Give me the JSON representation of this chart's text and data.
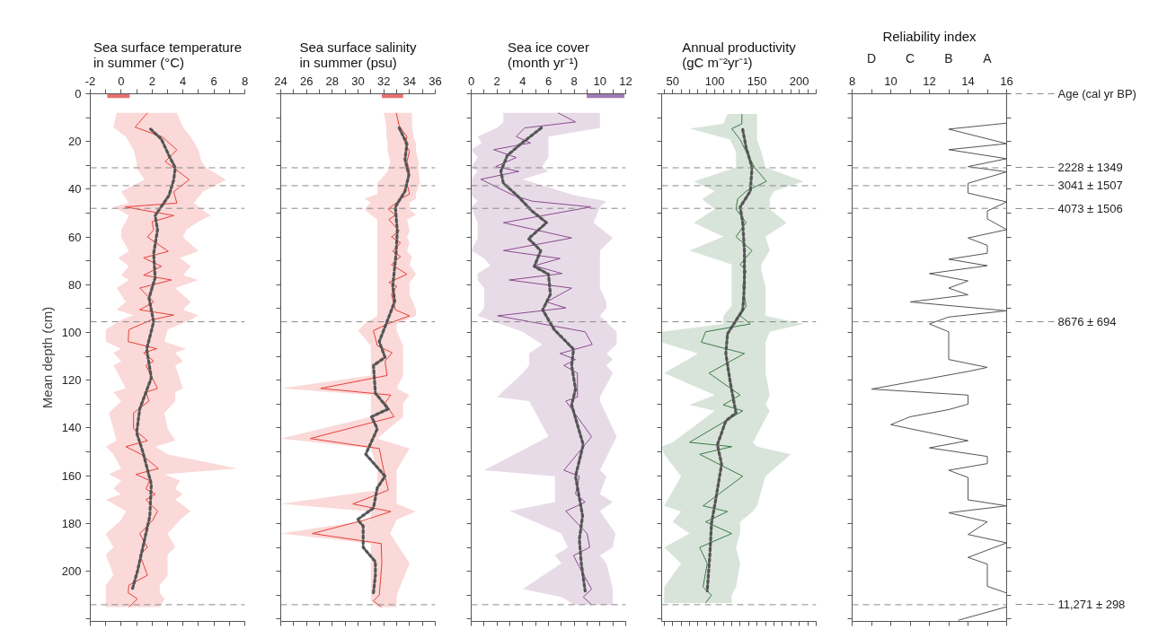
{
  "chart_data": [
    {
      "type": "line",
      "orientation": "horizontal",
      "title": "Sea surface temperature\nin summer (°C)",
      "ylabel": "Mean depth (cm)",
      "xlim": [
        -2,
        8
      ],
      "xticks": [
        -2,
        {
          "value": -1,
          "label": null
        },
        0,
        {
          "value": 1,
          "label": null
        },
        2,
        {
          "value": 3,
          "label": null
        },
        4,
        {
          "value": 5,
          "label": null
        },
        6,
        {
          "value": 7,
          "label": null
        },
        8
      ],
      "ylim": [
        221,
        0
      ],
      "yticks": [
        0,
        {
          "value": 10,
          "label": null
        },
        20,
        {
          "value": 30,
          "label": null
        },
        40,
        {
          "value": 50,
          "label": null
        },
        60,
        {
          "value": 70,
          "label": null
        },
        80,
        {
          "value": 90,
          "label": null
        },
        100,
        {
          "value": 110,
          "label": null
        },
        120,
        {
          "value": 130,
          "label": null
        },
        140,
        {
          "value": 150,
          "label": null
        },
        160,
        {
          "value": 170,
          "label": null
        },
        180,
        {
          "value": 190,
          "label": null
        },
        200,
        {
          "value": 210,
          "label": null
        },
        {
          "value": 220,
          "label": null
        }
      ],
      "ref_lines": [
        {
          "axis": "y",
          "value": 31
        },
        {
          "axis": "y",
          "value": 38.5
        },
        {
          "axis": "y",
          "value": 48
        },
        {
          "axis": "y",
          "value": 95.5
        },
        {
          "axis": "y",
          "value": 214
        }
      ],
      "series": [
        {
          "color": "#e8403a",
          "line_style": "solid",
          "x": [
            8,
            14,
            18,
            23.5,
            28.4,
            31,
            36,
            41,
            45.8,
            47.4,
            51,
            53.6,
            57,
            60,
            66,
            68.7,
            72.3,
            76,
            78,
            81.4,
            87.2,
            90.5,
            92.7,
            94.7,
            98.8,
            103.8,
            106.8,
            108.5,
            112,
            113.8,
            123.4,
            125,
            128.7,
            133.7,
            140.3,
            145.3,
            147.8,
            151,
            157,
            159.4,
            162,
            165.5,
            167.7,
            170,
            174.8,
            178.5,
            184.3,
            190,
            193,
            201.7,
            205.8,
            209,
            211.6,
            215
          ],
          "values": [
            1.7,
            0.9,
            2.65,
            3.6,
            2.85,
            3.4,
            4.4,
            3.4,
            3.6,
            0.25,
            3.4,
            2.0,
            2.1,
            1.7,
            3.05,
            1.45,
            2.6,
            1.45,
            3.25,
            1.2,
            2.1,
            1.2,
            3.4,
            1.95,
            0.5,
            0.45,
            2.3,
            1.45,
            2.1,
            1.6,
            2.35,
            1.6,
            1.8,
            0.8,
            0.8,
            1.7,
            0.3,
            1.3,
            2.4,
            0.95,
            1.85,
            1.6,
            2.2,
            1.6,
            2.35,
            2.05,
            1.2,
            1.7,
            1.2,
            1.7,
            0.5,
            0.45,
            1.05,
            0.5
          ],
          "lower": [
            -0.3,
            -0.5,
            0.3,
            0.8,
            1.0,
            1.0,
            1.5,
            0.0,
            0.5,
            -0.5,
            0.5,
            0.3,
            0.0,
            0.0,
            0.5,
            -0.2,
            0.5,
            0.0,
            0.5,
            -0.3,
            0.3,
            -0.3,
            0.8,
            0.0,
            -1.0,
            -1.0,
            0.0,
            -0.5,
            0.0,
            -0.5,
            0.3,
            -0.5,
            0.0,
            -0.8,
            -0.5,
            -0.3,
            -1.0,
            -0.5,
            0.0,
            -0.8,
            0.0,
            -0.5,
            0.0,
            -1.0,
            0.3,
            0.0,
            -1.0,
            -0.5,
            -1.0,
            -0.5,
            -1.0,
            -1.0,
            -1.0,
            -1.0
          ],
          "upper": [
            3.6,
            4.0,
            4.5,
            5.0,
            5.2,
            5.5,
            6.8,
            5.3,
            4.7,
            5.0,
            5.8,
            5.0,
            4.2,
            4.0,
            5.0,
            3.8,
            4.5,
            4.0,
            5.0,
            3.5,
            4.5,
            4.0,
            5.0,
            4.5,
            3.0,
            2.8,
            4.2,
            3.5,
            4.0,
            3.5,
            4.0,
            3.5,
            3.5,
            2.8,
            3.0,
            3.5,
            2.2,
            3.0,
            7.5,
            2.8,
            3.8,
            3.5,
            4.0,
            3.5,
            4.5,
            3.8,
            3.0,
            3.5,
            3.0,
            3.0,
            2.5,
            2.5,
            2.8,
            2.5
          ]
        },
        {
          "color": "#555555",
          "line_style": "dotted",
          "x": [
            14.8,
            19,
            26,
            31,
            36,
            42.5,
            51,
            57,
            67,
            77,
            85.6,
            95.5,
            107,
            119,
            132,
            142,
            150,
            163.5,
            177,
            190,
            200,
            208
          ],
          "values": [
            1.9,
            2.6,
            3.1,
            3.5,
            3.4,
            3.1,
            2.2,
            2.35,
            2.1,
            2.2,
            1.8,
            2.1,
            1.65,
            1.95,
            1.2,
            1.0,
            1.4,
            1.95,
            1.85,
            1.4,
            1.05,
            0.7
          ]
        },
        {
          "type": "bar",
          "color": "#e87070",
          "x": [
            0
          ],
          "base": [
            -0.9
          ],
          "values": [
            1.45
          ]
        }
      ]
    },
    {
      "type": "line",
      "orientation": "horizontal",
      "title": "Sea surface salinity\nin summer (psu)",
      "xlim": [
        24,
        36
      ],
      "xticks": [
        24,
        {
          "value": 25,
          "label": null
        },
        26,
        {
          "value": 27,
          "label": null
        },
        28,
        {
          "value": 29,
          "label": null
        },
        30,
        {
          "value": 31,
          "label": null
        },
        32,
        {
          "value": 33,
          "label": null
        },
        34,
        {
          "value": 35,
          "label": null
        },
        36
      ],
      "ylim": [
        221,
        0
      ],
      "yticks": [
        0,
        10,
        20,
        30,
        40,
        50,
        60,
        70,
        80,
        90,
        100,
        110,
        120,
        130,
        140,
        150,
        160,
        170,
        180,
        190,
        200,
        210,
        220
      ],
      "tick_labels": "x",
      "ref_lines": [
        {
          "axis": "y",
          "value": 31
        },
        {
          "axis": "y",
          "value": 38.5
        },
        {
          "axis": "y",
          "value": 48
        },
        {
          "axis": "y",
          "value": 95.5
        },
        {
          "axis": "y",
          "value": 214
        }
      ],
      "series": [
        {
          "color": "#e8403a",
          "line_style": "solid",
          "x": [
            8,
            13.4,
            18,
            21,
            24,
            28.4,
            32.5,
            37.5,
            42,
            44,
            45.5,
            48.3,
            50.7,
            52.7,
            57.4,
            60,
            62.4,
            66,
            68.2,
            71.5,
            75.6,
            79,
            80.6,
            84,
            90.5,
            93,
            96.4,
            99.2,
            105.5,
            108.5,
            112,
            118,
            123.4,
            126.2,
            129.5,
            135.3,
            144.4,
            148.6,
            157.7,
            166,
            171.8,
            175,
            178.4,
            184.2,
            188.4,
            196.7,
            210,
            212.4,
            215
          ],
          "values": [
            32.97,
            33.2,
            33.8,
            33.65,
            34.0,
            33.8,
            34.0,
            33.8,
            34.0,
            33.3,
            33.0,
            32.35,
            32.9,
            32.4,
            33.2,
            32.6,
            33.3,
            32.7,
            33.3,
            32.6,
            33.8,
            32.4,
            33.0,
            32.6,
            32.9,
            34.0,
            32.3,
            31.2,
            31.5,
            32.65,
            32.1,
            32.25,
            27.1,
            32.55,
            32.1,
            32.8,
            26.3,
            31.65,
            32.0,
            32.35,
            29.6,
            32.55,
            30.6,
            26.45,
            31.8,
            31.85,
            31.65,
            31.2,
            31.8
          ],
          "lower": [
            32.0,
            32.2,
            32.2,
            32.3,
            32.3,
            32.5,
            32.3,
            31.5,
            31.5,
            30.5,
            31.0,
            30.5,
            31.0,
            31.5,
            31.5,
            31.5,
            31.5,
            31.5,
            31.5,
            31.5,
            31.5,
            31.5,
            31.5,
            31.5,
            31.5,
            31.5,
            30.5,
            30.0,
            31.0,
            31.0,
            31.0,
            31.0,
            24.0,
            31.0,
            31.0,
            31.0,
            24.0,
            31.0,
            31.5,
            31.5,
            24.0,
            31.0,
            31.0,
            24.0,
            31.0,
            31.0,
            31.0,
            31.0,
            31.5
          ],
          "upper": [
            34.2,
            34.2,
            34.3,
            34.5,
            34.5,
            34.7,
            34.7,
            34.8,
            34.5,
            34.5,
            34.0,
            34.0,
            34.5,
            33.8,
            34.0,
            33.8,
            34.0,
            33.8,
            34.2,
            34.0,
            34.5,
            34.0,
            34.0,
            34.0,
            34.5,
            34.5,
            33.0,
            33.0,
            33.5,
            33.5,
            33.5,
            33.5,
            33.0,
            34.0,
            33.5,
            33.5,
            31.5,
            34.0,
            33.0,
            33.0,
            33.0,
            34.5,
            33.0,
            32.5,
            33.0,
            34.0,
            33.0,
            33.0,
            33.0
          ]
        },
        {
          "color": "#555555",
          "line_style": "dotted",
          "x": [
            14.3,
            21,
            27.5,
            34,
            40.8,
            47.4,
            57.4,
            67.3,
            80.6,
            87,
            95.5,
            103.8,
            110.4,
            113.8,
            125.4,
            132,
            135.3,
            140.3,
            151,
            160.2,
            165,
            173.5,
            178.4,
            181,
            190,
            196,
            201.7,
            209
          ],
          "values": [
            33.2,
            33.8,
            33.65,
            33.95,
            33.65,
            32.9,
            33.05,
            32.95,
            32.7,
            32.85,
            32.25,
            31.65,
            32.1,
            31.2,
            31.35,
            32.35,
            31.05,
            31.5,
            30.6,
            32.1,
            31.5,
            31.2,
            29.95,
            30.4,
            30.4,
            31.35,
            31.35,
            31.2
          ]
        },
        {
          "type": "bar",
          "color": "#e87070",
          "x": [
            0
          ],
          "base": [
            31.85
          ],
          "values": [
            1.65
          ]
        }
      ]
    },
    {
      "type": "line",
      "orientation": "horizontal",
      "title": "Sea ice cover\n(month yr⁻¹)",
      "xlim": [
        0,
        12
      ],
      "xticks": [
        0,
        {
          "value": 1,
          "label": null
        },
        2,
        {
          "value": 3,
          "label": null
        },
        4,
        {
          "value": 5,
          "label": null
        },
        6,
        {
          "value": 7,
          "label": null
        },
        8,
        {
          "value": 9,
          "label": null
        },
        10,
        {
          "value": 11,
          "label": null
        },
        12
      ],
      "ylim": [
        221,
        0
      ],
      "yticks": [
        0,
        10,
        20,
        30,
        40,
        50,
        60,
        70,
        80,
        90,
        100,
        110,
        120,
        130,
        140,
        150,
        160,
        170,
        180,
        190,
        200,
        210,
        220
      ],
      "tick_labels": "x",
      "ref_lines": [
        {
          "axis": "y",
          "value": 31
        },
        {
          "axis": "y",
          "value": 38.5
        },
        {
          "axis": "y",
          "value": 48
        },
        {
          "axis": "y",
          "value": 95.5
        },
        {
          "axis": "y",
          "value": 214
        }
      ],
      "series": [
        {
          "color": "#8a4c8e",
          "line_style": "solid",
          "x": [
            8,
            11.8,
            14.3,
            17.9,
            20.6,
            23.4,
            26.7,
            30.5,
            32.5,
            35.8,
            42.5,
            45,
            47.4,
            54,
            60.4,
            65.7,
            69,
            72,
            75.3,
            78,
            81.4,
            87.2,
            89.7,
            93,
            99.7,
            105,
            108.8,
            111.3,
            113.8,
            117,
            127,
            128.7,
            143.6,
            157.7,
            160.2,
            167.7,
            171,
            174.8,
            184.2,
            190,
            193.4,
            196.7,
            207.5,
            210.8,
            214
          ],
          "values": [
            6.75,
            8.1,
            4.15,
            3.5,
            4.6,
            1.75,
            3.5,
            1.9,
            3.7,
            0.75,
            3.25,
            4.75,
            9.3,
            2.5,
            7.8,
            2.5,
            6.9,
            4.9,
            7.05,
            2.95,
            7.8,
            5.85,
            7.35,
            2.05,
            8.85,
            9.4,
            6.9,
            8.1,
            7.2,
            8.25,
            8.25,
            7.35,
            9.35,
            7.2,
            8.4,
            8.1,
            8.85,
            7.35,
            9.0,
            9.2,
            7.95,
            8.25,
            9.35,
            8.7,
            9.35
          ],
          "lower": [
            2.5,
            2.5,
            2.0,
            0.5,
            0.8,
            0.0,
            0.5,
            0.0,
            0.5,
            0.0,
            0.0,
            0.5,
            0.0,
            0.5,
            0.5,
            0.0,
            1.0,
            1.5,
            0.5,
            0.5,
            1.0,
            1.0,
            1.0,
            0.5,
            4.0,
            5.5,
            4.5,
            4.5,
            4.5,
            4.0,
            2.0,
            4.5,
            6.0,
            1.0,
            6.5,
            6.5,
            6.5,
            3.0,
            7.0,
            7.5,
            6.5,
            7.0,
            4.0,
            7.0,
            8.0
          ],
          "upper": [
            10.0,
            10.0,
            10.0,
            6.0,
            6.0,
            6.0,
            6.0,
            5.5,
            6.0,
            4.0,
            8.0,
            10.5,
            10.0,
            9.5,
            11.0,
            10.0,
            10.0,
            10.0,
            10.0,
            10.0,
            10.0,
            10.5,
            10.5,
            10.0,
            11.3,
            11.3,
            10.5,
            11.0,
            10.5,
            11.0,
            10.0,
            10.0,
            11.3,
            10.0,
            10.5,
            10.0,
            11.0,
            10.0,
            11.2,
            11.0,
            10.0,
            10.5,
            11.0,
            11.0,
            11.0
          ]
        },
        {
          "color": "#555555",
          "line_style": "dotted",
          "x": [
            14.3,
            21,
            25.9,
            32.5,
            37.5,
            42.5,
            49,
            54,
            60.7,
            65.7,
            72.3,
            75.6,
            84,
            90.5,
            98.8,
            107,
            113.8,
            123.7,
            130.3,
            147,
            160.2,
            176.8,
            186.7,
            196.7,
            208.3
          ],
          "values": [
            5.45,
            3.85,
            2.8,
            2.3,
            2.5,
            3.55,
            4.7,
            5.85,
            4.45,
            5.4,
            4.9,
            6.0,
            6.15,
            5.55,
            6.45,
            7.95,
            7.8,
            8.1,
            7.8,
            8.7,
            8.1,
            8.65,
            8.4,
            8.55,
            8.85
          ]
        },
        {
          "type": "bar",
          "color": "#a07ab8",
          "x": [
            0
          ],
          "base": [
            8.97
          ],
          "values": [
            2.93
          ]
        }
      ]
    },
    {
      "type": "line",
      "orientation": "horizontal",
      "title": "Annual productivity\n(gC m⁻²yr⁻¹)",
      "xlim": [
        37,
        220
      ],
      "xticks": [
        {
          "value": 40,
          "label": null
        },
        50,
        {
          "value": 60,
          "label": null
        },
        {
          "value": 70,
          "label": null
        },
        {
          "value": 80,
          "label": null
        },
        {
          "value": 90,
          "label": null
        },
        100,
        {
          "value": 110,
          "label": null
        },
        {
          "value": 120,
          "label": null
        },
        {
          "value": 130,
          "label": null
        },
        {
          "value": 140,
          "label": null
        },
        150,
        {
          "value": 160,
          "label": null
        },
        {
          "value": 170,
          "label": null
        },
        {
          "value": 180,
          "label": null
        },
        {
          "value": 190,
          "label": null
        },
        200,
        {
          "value": 210,
          "label": null
        },
        {
          "value": 220,
          "label": null
        }
      ],
      "ylim": [
        221,
        0
      ],
      "yticks": [
        0,
        10,
        20,
        30,
        40,
        50,
        60,
        70,
        80,
        90,
        100,
        110,
        120,
        130,
        140,
        150,
        160,
        170,
        180,
        190,
        200,
        210,
        220
      ],
      "tick_labels": "x",
      "ref_lines": [
        {
          "axis": "y",
          "value": 31
        },
        {
          "axis": "y",
          "value": 38.5
        },
        {
          "axis": "y",
          "value": 48
        },
        {
          "axis": "y",
          "value": 95.5
        },
        {
          "axis": "y",
          "value": 214
        }
      ],
      "series": [
        {
          "color": "#3d7a45",
          "line_style": "solid",
          "x": [
            8.5,
            12.6,
            14.6,
            19.2,
            24.2,
            30.8,
            36.7,
            40.8,
            44.1,
            48.3,
            54,
            59.9,
            65.7,
            71.5,
            74,
            80.6,
            88.9,
            93,
            96.4,
            99.7,
            104.1,
            108.8,
            117,
            126.2,
            130.3,
            132.8,
            146,
            147.8,
            151,
            160.2,
            172.6,
            175,
            179.3,
            184.2,
            190,
            196.7,
            206.6,
            210,
            213.3
          ],
          "values": [
            132,
            132,
            120,
            130,
            137,
            147,
            161,
            137,
            127,
            125,
            137,
            125,
            144,
            130,
            137,
            133,
            137,
            130,
            142,
            89,
            84,
            135,
            93,
            130,
            110,
            133,
            70,
            120,
            82,
            133,
            86,
            115,
            89,
            120,
            82,
            91,
            86,
            96,
            89
          ],
          "lower": [
            115,
            110,
            70,
            118,
            125,
            125,
            75,
            100,
            85,
            100,
            75,
            110,
            70,
            120,
            120,
            120,
            120,
            110,
            110,
            37,
            37,
            80,
            40,
            100,
            70,
            100,
            50,
            37,
            40,
            60,
            40,
            60,
            50,
            70,
            40,
            60,
            40,
            40,
            40
          ],
          "upper": [
            150,
            150,
            150,
            150,
            155,
            160,
            205,
            170,
            165,
            165,
            185,
            160,
            165,
            155,
            155,
            160,
            160,
            160,
            205,
            165,
            160,
            160,
            160,
            165,
            160,
            165,
            145,
            150,
            190,
            160,
            150,
            145,
            130,
            130,
            125,
            130,
            125,
            120,
            120
          ]
        },
        {
          "color": "#555555",
          "line_style": "dotted",
          "x": [
            15,
            22.5,
            30.8,
            40.8,
            47.4,
            54,
            65.7,
            80.6,
            90.5,
            100.5,
            108.8,
            120.4,
            133.7,
            137,
            147,
            155.2,
            170,
            180,
            193.4,
            208.3
          ],
          "values": [
            133,
            137,
            144,
            142,
            130,
            133,
            135,
            135,
            133,
            115,
            113,
            118,
            125,
            113,
            103,
            108,
            101,
            96,
            94,
            91
          ]
        }
      ]
    },
    {
      "type": "line",
      "orientation": "horizontal",
      "title": "Reliability index",
      "xlim": [
        8,
        16
      ],
      "xticks": [
        8,
        {
          "value": 9,
          "label": null
        },
        10,
        {
          "value": 11,
          "label": null
        },
        12,
        {
          "value": 13,
          "label": null
        },
        14,
        {
          "value": 15,
          "label": null
        },
        16
      ],
      "ylim": [
        221,
        0
      ],
      "yticks": [
        0,
        10,
        20,
        30,
        40,
        50,
        60,
        70,
        80,
        90,
        100,
        110,
        120,
        130,
        140,
        150,
        160,
        170,
        180,
        190,
        200,
        210,
        220
      ],
      "tick_labels": "x",
      "annotations": [
        "Age (cal  yr BP)",
        "D",
        "C",
        "B",
        "A",
        "2228 ± 1349",
        "3041 ±  1507",
        "4073 ± 1506",
        "8676 ± 694",
        "11,271 ± 298"
      ],
      "ref_lines": [
        {
          "axis": "y",
          "value": 31
        },
        {
          "axis": "y",
          "value": 38.5
        },
        {
          "axis": "y",
          "value": 48
        },
        {
          "axis": "y",
          "value": 95.5
        },
        {
          "axis": "y",
          "value": 214
        }
      ],
      "series": [
        {
          "color": "#555555",
          "line_style": "solid",
          "x": [
            12.3,
            14.8,
            20.9,
            23.4,
            27.2,
            30.5,
            32.7,
            37.5,
            41.6,
            45.3,
            49.1,
            52.4,
            56.9,
            60.4,
            63.5,
            66.8,
            69.3,
            72.0,
            75.3,
            78.4,
            81.4,
            84.2,
            87.2,
            90.9,
            93.5,
            96.4,
            99.7,
            111.3,
            114.6,
            116.3,
            123.7,
            126.2,
            130.0,
            132.3,
            135.3,
            138.6,
            145.3,
            148.3,
            151.9,
            154.9,
            157.7,
            160.7,
            170.1,
            172.6,
            175.5,
            179.3,
            184.6,
            188.1,
            194.2,
            197.0,
            206.3,
            209.1,
            214.9,
            220.5
          ],
          "values": [
            16,
            13,
            16,
            13,
            16,
            14,
            16,
            14,
            14,
            16,
            15,
            15,
            16,
            14,
            15,
            15,
            13,
            15,
            12,
            14,
            13,
            14,
            11,
            16,
            13,
            12,
            13,
            13,
            15,
            14,
            9,
            14,
            14,
            13,
            11,
            10,
            14,
            12,
            15,
            15,
            13,
            14,
            14,
            16,
            13,
            15,
            14,
            16,
            14,
            15,
            15,
            16,
            16,
            13.5
          ]
        }
      ]
    }
  ]
}
